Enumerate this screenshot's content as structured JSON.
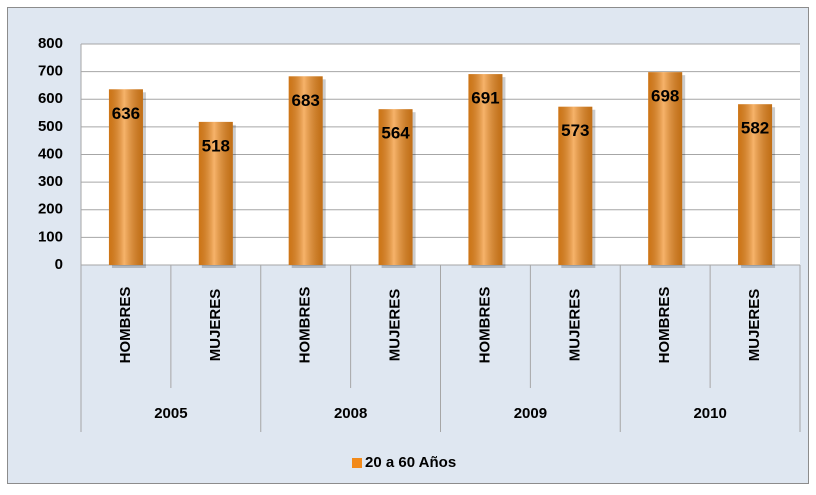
{
  "chart_data": {
    "type": "bar",
    "categories": [
      "HOMBRES",
      "MUJERES",
      "HOMBRES",
      "MUJERES",
      "HOMBRES",
      "MUJERES",
      "HOMBRES",
      "MUJERES"
    ],
    "groups": [
      "2005",
      "2008",
      "2009",
      "2010"
    ],
    "series": [
      {
        "name": "20 a 60 Años",
        "color": "#f28a1a",
        "values": [
          636,
          518,
          683,
          564,
          691,
          573,
          698,
          582
        ]
      }
    ],
    "ylim": [
      0,
      800
    ],
    "yticks": [
      0,
      100,
      200,
      300,
      400,
      500,
      600,
      700,
      800
    ],
    "grid": true,
    "legend": "bottom"
  }
}
